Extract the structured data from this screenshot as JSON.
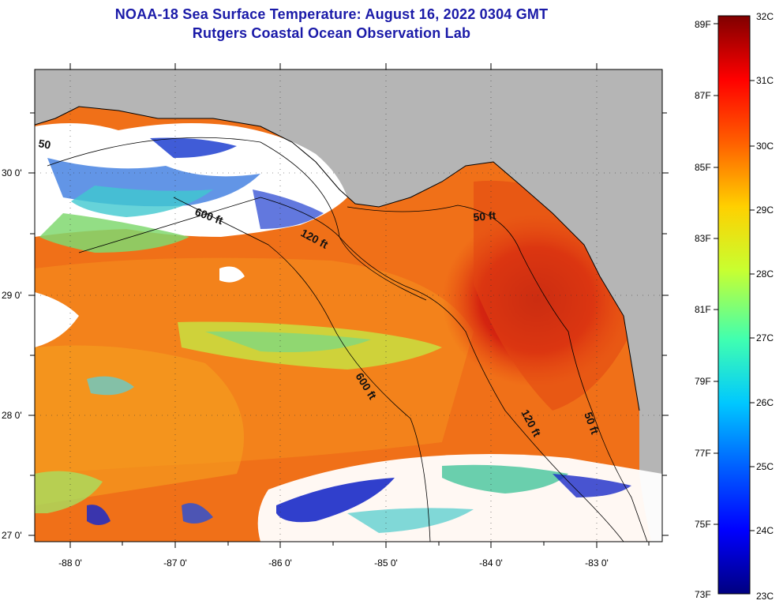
{
  "title_line1": "NOAA-18 Sea Surface Temperature:  August 16, 2022 0304 GMT",
  "title_line2": "Rutgers Coastal Ocean Observation Lab",
  "lat_labels": [
    "30 0'",
    "29 0'",
    "28 0'",
    "27 0'"
  ],
  "lon_labels": [
    "-88 0'",
    "-87 0'",
    "-86 0'",
    "-85 0'",
    "-84 0'",
    "-83 0'"
  ],
  "contour_labels": [
    "600 ft",
    "120 ft",
    "50 ft",
    "600 ft",
    "120 ft",
    "50 ft",
    "50"
  ],
  "colorbar": {
    "fahrenheit": [
      "89F",
      "87F",
      "85F",
      "83F",
      "81F",
      "79F",
      "77F",
      "75F",
      "73F"
    ],
    "celsius": [
      "32C",
      "31C",
      "30C",
      "29C",
      "28C",
      "27C",
      "26C",
      "25C",
      "24C",
      "23C"
    ]
  },
  "colors": {
    "land": "#b5b5b5",
    "cloud": "#ffffff",
    "title": "#1a1aa8"
  }
}
